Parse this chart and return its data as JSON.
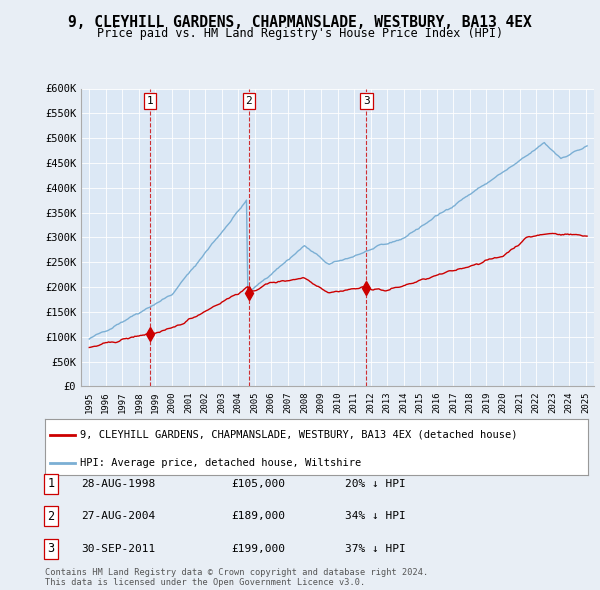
{
  "title": "9, CLEYHILL GARDENS, CHAPMANSLADE, WESTBURY, BA13 4EX",
  "subtitle": "Price paid vs. HM Land Registry's House Price Index (HPI)",
  "background_color": "#e8eef5",
  "plot_bg_color": "#dce8f5",
  "legend_line1": "9, CLEYHILL GARDENS, CHAPMANSLADE, WESTBURY, BA13 4EX (detached house)",
  "legend_line2": "HPI: Average price, detached house, Wiltshire",
  "footer1": "Contains HM Land Registry data © Crown copyright and database right 2024.",
  "footer2": "This data is licensed under the Open Government Licence v3.0.",
  "red_line_color": "#cc0000",
  "blue_line_color": "#7bafd4",
  "vline_color": "#cc0000",
  "ylim": [
    0,
    600000
  ],
  "yticks": [
    0,
    50000,
    100000,
    150000,
    200000,
    250000,
    300000,
    350000,
    400000,
    450000,
    500000,
    550000,
    600000
  ],
  "ytick_labels": [
    "£0",
    "£50K",
    "£100K",
    "£150K",
    "£200K",
    "£250K",
    "£300K",
    "£350K",
    "£400K",
    "£450K",
    "£500K",
    "£550K",
    "£600K"
  ],
  "xlim_start": 1994.5,
  "xlim_end": 2025.5,
  "xtick_years": [
    1995,
    1996,
    1997,
    1998,
    1999,
    2000,
    2001,
    2002,
    2003,
    2004,
    2005,
    2006,
    2007,
    2008,
    2009,
    2010,
    2011,
    2012,
    2013,
    2014,
    2015,
    2016,
    2017,
    2018,
    2019,
    2020,
    2021,
    2022,
    2023,
    2024,
    2025
  ],
  "sale_years": [
    1998.65,
    2004.65,
    2011.75
  ],
  "sale_values": [
    105000,
    189000,
    199000
  ],
  "sale_labels": [
    "1",
    "2",
    "3"
  ],
  "sale_dates": [
    "28-AUG-1998",
    "27-AUG-2004",
    "30-SEP-2011"
  ],
  "sale_prices": [
    "£105,000",
    "£189,000",
    "£199,000"
  ],
  "sale_hpi_pct": [
    "20% ↓ HPI",
    "34% ↓ HPI",
    "37% ↓ HPI"
  ]
}
